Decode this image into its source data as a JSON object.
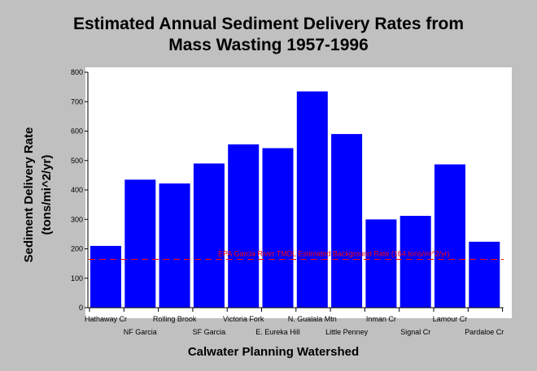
{
  "chart_data": {
    "type": "bar",
    "title": [
      "Estimated Annual Sediment Delivery Rates from",
      "Mass Wasting 1957-1996"
    ],
    "xlabel": "Calwater Planning Watershed",
    "ylabel": [
      "Sediment Delivery Rate",
      "(tons/mi^2/yr)"
    ],
    "ylim": [
      0,
      800
    ],
    "yticks": [
      "0",
      "100",
      "200",
      "300",
      "400",
      "500",
      "600",
      "700",
      "800"
    ],
    "grid": false,
    "categories": [
      "Hathaway Cr",
      "NF Garcia",
      "Rolling Brook",
      "SF Garcia",
      "Victoria Fork",
      "E. Eureka Hill",
      "N. Gualala Mtn",
      "Little Penney",
      "Inman Cr",
      "Signal Cr",
      "Lamour Cr",
      "Pardaloe Cr"
    ],
    "values": [
      210,
      435,
      422,
      490,
      555,
      542,
      735,
      590,
      300,
      312,
      487,
      224
    ],
    "bar_color": "#0000ff",
    "reference_line": {
      "value": 164,
      "label": "EPA Garcia River TMDL Estimated Background Rate (164 tons/mi^2/yr)",
      "color": "#ff0000"
    }
  }
}
